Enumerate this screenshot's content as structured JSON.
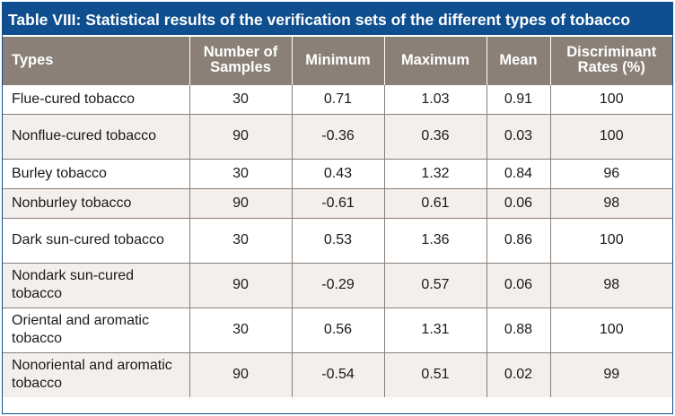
{
  "caption": "Table VIII: Statistical results of the verification sets of the different types of tobacco",
  "headers": {
    "types": "Types",
    "number_of_samples": "Number of Samples",
    "minimum": "Minimum",
    "maximum": "Maximum",
    "mean": "Mean",
    "discriminant_rates": "Discriminant Rates (%)"
  },
  "rows": [
    {
      "type": "Flue-cured tobacco",
      "samples": "30",
      "min": "0.71",
      "max": "1.03",
      "mean": "0.91",
      "rate": "100"
    },
    {
      "type": "Nonflue-cured tobacco",
      "samples": "90",
      "min": "-0.36",
      "max": "0.36",
      "mean": "0.03",
      "rate": "100"
    },
    {
      "type": "Burley tobacco",
      "samples": "30",
      "min": "0.43",
      "max": "1.32",
      "mean": "0.84",
      "rate": "96"
    },
    {
      "type": "Nonburley tobacco",
      "samples": "90",
      "min": "-0.61",
      "max": "0.61",
      "mean": "0.06",
      "rate": "98"
    },
    {
      "type": "Dark sun-cured tobacco",
      "samples": "30",
      "min": "0.53",
      "max": "1.36",
      "mean": "0.86",
      "rate": "100"
    },
    {
      "type": "Nondark sun-cured tobacco",
      "samples": "90",
      "min": "-0.29",
      "max": "0.57",
      "mean": "0.06",
      "rate": "98"
    },
    {
      "type": "Oriental and aromatic tobacco",
      "samples": "30",
      "min": "0.56",
      "max": "1.31",
      "mean": "0.88",
      "rate": "100"
    },
    {
      "type": "Nonoriental and aromatic tobacco",
      "samples": "90",
      "min": "-0.54",
      "max": "0.51",
      "mean": "0.02",
      "rate": "99"
    }
  ],
  "colors": {
    "caption_bg": "#0f4f8f",
    "header_bg": "#8a8078",
    "stripe_bg": "#f3efec"
  }
}
